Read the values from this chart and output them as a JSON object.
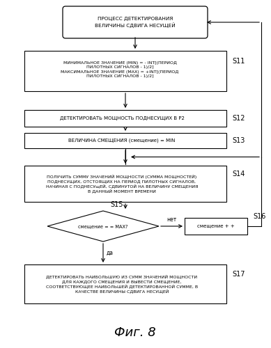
{
  "title": "Фиг. 8",
  "bg_color": "#ffffff",
  "line_color": "#000000",
  "box_color": "#ffffff",
  "text_color": "#000000",
  "start_text": "ПРОЦЕСС ДЕТЕКТИРОВАНИЯ\nВЕЛИЧИНЫ СДВИГА НЕСУЩЕЙ",
  "s11_text": "МИНИМАЛЬНОЕ ЗНАЧЕНИЕ (MIN) = - INT[(ПЕРИОД\nПИЛОТНЫХ СИГНАЛОВ - 1)/2]\nМАКСИМАЛЬНОЕ ЗНАЧЕНИЕ (MAX) = +INT[(ПЕРИОД\nПИЛОТНЫХ СИГНАЛОВ - 1)/2]",
  "s12_text": "ДЕТЕКТИРОВАТЬ МОЩНОСТЬ ПОДНЕСУЩИХ В P2",
  "s13_text": "ВЕЛИЧИНА СМЕЩЕНИЯ (смещение) = MIN",
  "s14_text": "ПОЛУЧИТЬ СУММУ ЗНАЧЕНИЙ МОЩНОСТИ (СУММА МОЩНОСТЕЙ)\nПОДНЕСУЩИХ, ОТСТОЯЩИХ НА ПЕРИОД ПИЛОТНЫХ СИГНАЛОВ,\nНАЧИНАЯ С ПОДНЕСУщЕЙ, СДВИНУТОЙ НА ВЕЛИЧИНУ СМЕЩЕНИЯ\nВ ДАННЫЙ МОМЕНТ ВРЕМЕНИ",
  "s15_text": "смещение = = MAX?",
  "s16_text": "смещение + +",
  "s17_text": "ДЕТЕКТИРОВАТЬ НАИБОЛЬШУЮ ИЗ СУММ ЗНАЧЕНИЙ МОЩНОСТИ\nДЛЯ КАЖДОГО СМЕЩЕНИЯ И ВЫВЕСТИ СМЕЩЕНИЕ,\nСООТВЕТСТВУЮЩЕЕ НАИБОЛЬШЕЙ ДЕТЕКТИРОВАННОЙ СУММЕ, В\nКАЧЕСТВЕ ВЕЛИЧИНЫ СДВИГА НЕСУЩЕЙ",
  "yes_text": "да",
  "no_text": "нет"
}
